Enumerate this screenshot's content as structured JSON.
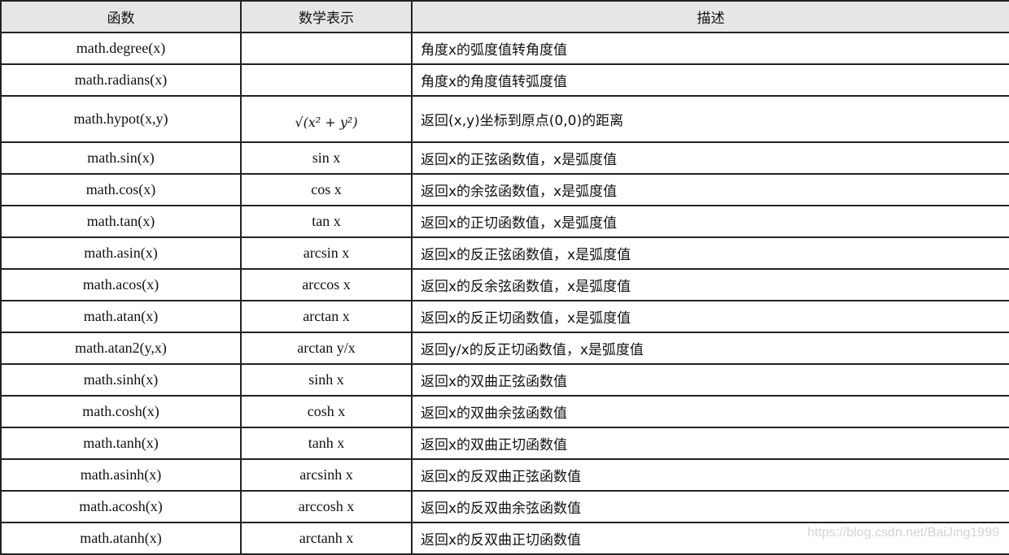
{
  "headers": [
    "函数",
    "数学表示",
    "描述"
  ],
  "rows": [
    {
      "fn": "math.degree(x)",
      "math": "",
      "desc": "角度x的弧度值转角度值"
    },
    {
      "fn": "math.radians(x)",
      "math": "",
      "desc": "角度x的角度值转弧度值"
    },
    {
      "fn": "math.hypot(x,y)",
      "math": "√(x² + y²)",
      "desc": "返回(x,y)坐标到原点(0,0)的距离"
    },
    {
      "fn": "math.sin(x)",
      "math": "sin x",
      "desc": "返回x的正弦函数值，x是弧度值"
    },
    {
      "fn": "math.cos(x)",
      "math": "cos x",
      "desc": "返回x的余弦函数值，x是弧度值"
    },
    {
      "fn": "math.tan(x)",
      "math": "tan x",
      "desc": "返回x的正切函数值，x是弧度值"
    },
    {
      "fn": "math.asin(x)",
      "math": "arcsin x",
      "desc": "返回x的反正弦函数值，x是弧度值"
    },
    {
      "fn": "math.acos(x)",
      "math": "arccos x",
      "desc": "返回x的反余弦函数值，x是弧度值"
    },
    {
      "fn": "math.atan(x)",
      "math": "arctan x",
      "desc": "返回x的反正切函数值，x是弧度值"
    },
    {
      "fn": "math.atan2(y,x)",
      "math": "arctan y/x",
      "desc": "返回y/x的反正切函数值，x是弧度值"
    },
    {
      "fn": "math.sinh(x)",
      "math": "sinh x",
      "desc": "返回x的双曲正弦函数值"
    },
    {
      "fn": "math.cosh(x)",
      "math": "cosh x",
      "desc": "返回x的双曲余弦函数值"
    },
    {
      "fn": "math.tanh(x)",
      "math": "tanh x",
      "desc": "返回x的双曲正切函数值"
    },
    {
      "fn": "math.asinh(x)",
      "math": "arcsinh x",
      "desc": "返回x的反双曲正弦函数值"
    },
    {
      "fn": "math.acosh(x)",
      "math": "arccosh x",
      "desc": "返回x的反双曲余弦函数值"
    },
    {
      "fn": "math.atanh(x)",
      "math": "arctanh x",
      "desc": "返回x的反双曲正切函数值"
    }
  ],
  "watermark": "https://blog.csdn.net/BaiJing1999"
}
